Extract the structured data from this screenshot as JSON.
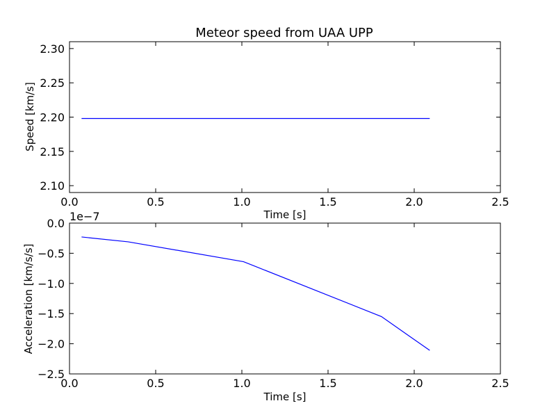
{
  "chart_data": [
    {
      "type": "line",
      "title": "Meteor speed from  UAA UPP",
      "xlabel": "Time [s]",
      "ylabel": "Speed [km/s]",
      "xlim": [
        0.0,
        2.5
      ],
      "ylim": [
        2.09,
        2.31
      ],
      "xticks": [
        0.0,
        0.5,
        1.0,
        1.5,
        2.0,
        2.5
      ],
      "xtick_labels": [
        "0.0",
        "0.5",
        "1.0",
        "1.5",
        "2.0",
        "2.5"
      ],
      "yticks": [
        2.1,
        2.15,
        2.2,
        2.25,
        2.3
      ],
      "ytick_labels": [
        "2.10",
        "2.15",
        "2.20",
        "2.25",
        "2.30"
      ],
      "grid": false,
      "series": [
        {
          "color": "#0000ff",
          "x": [
            0.07,
            0.34,
            1.01,
            1.81,
            2.09
          ],
          "y": [
            2.198,
            2.198,
            2.198,
            2.198,
            2.198
          ]
        }
      ]
    },
    {
      "type": "line",
      "title": "",
      "xlabel": "Time [s]",
      "ylabel": "Acceleration [km/s/s]",
      "offset_text": "1e−7",
      "xlim": [
        0.0,
        2.5
      ],
      "ylim": [
        -2.5,
        0.0
      ],
      "xticks": [
        0.0,
        0.5,
        1.0,
        1.5,
        2.0,
        2.5
      ],
      "xtick_labels": [
        "0.0",
        "0.5",
        "1.0",
        "1.5",
        "2.0",
        "2.5"
      ],
      "yticks": [
        -2.5,
        -2.0,
        -1.5,
        -1.0,
        -0.5,
        0.0
      ],
      "ytick_labels": [
        "−2.5",
        "−2.0",
        "−1.5",
        "−1.0",
        "−0.5",
        "0.0"
      ],
      "grid": false,
      "series": [
        {
          "color": "#0000ff",
          "x": [
            0.07,
            0.34,
            1.01,
            1.81,
            1.96,
            2.09
          ],
          "y": [
            -0.23,
            -0.31,
            -0.64,
            -1.55,
            -1.85,
            -2.11
          ]
        }
      ]
    }
  ]
}
